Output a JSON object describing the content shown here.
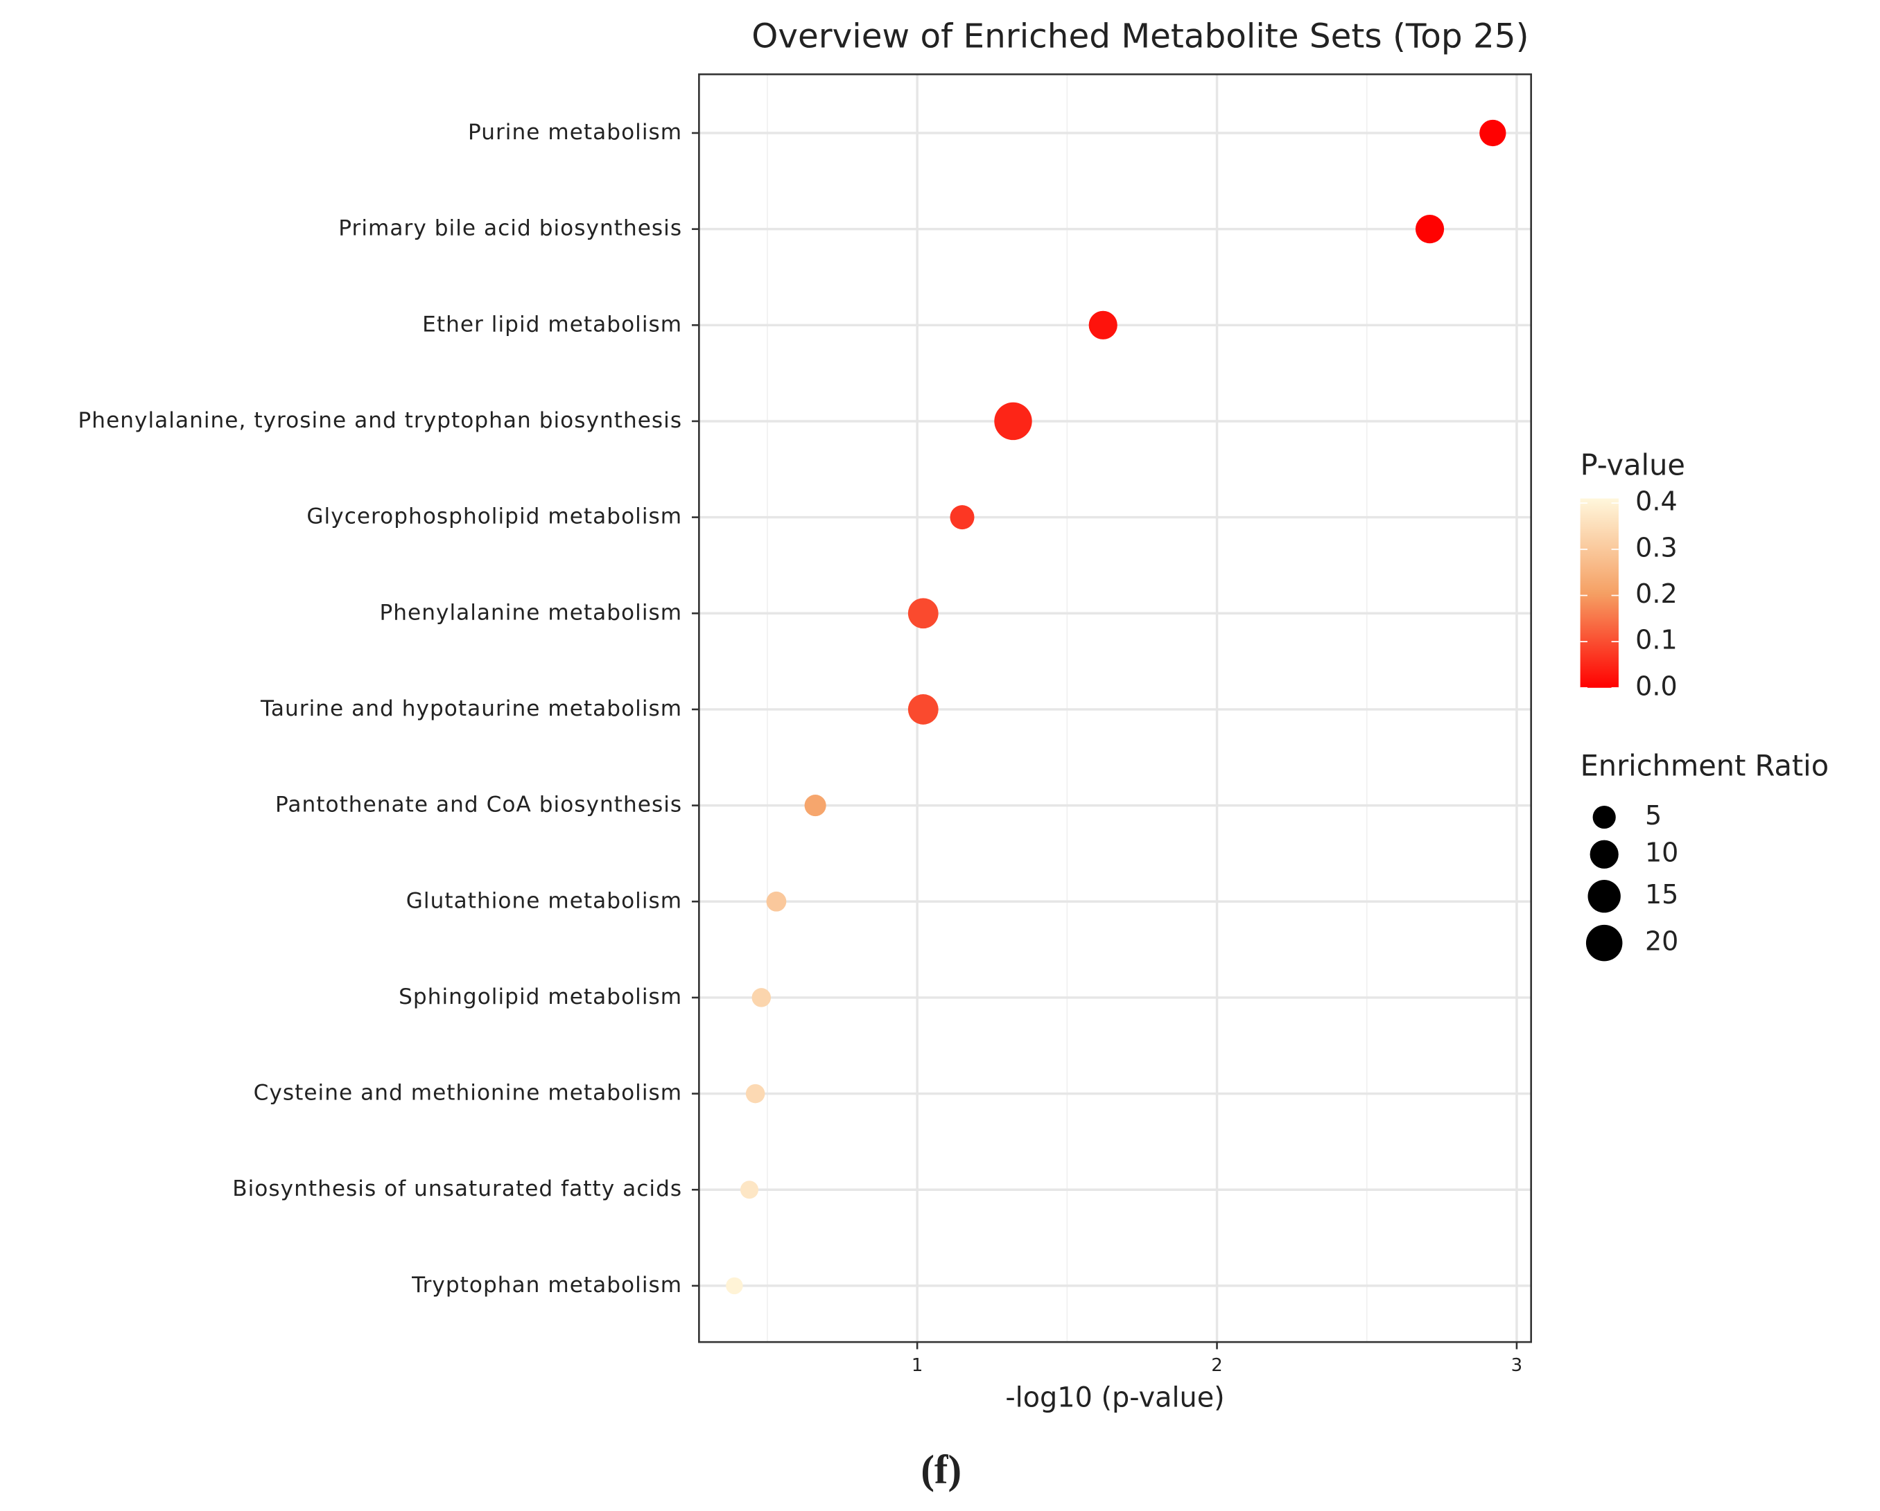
{
  "chart_data": {
    "type": "dot",
    "title": "Overview of Enriched Metabolite Sets (Top 25)",
    "xlabel": "-log10 (p-value)",
    "caption": "(f)",
    "categories": [
      "Purine metabolism",
      "Primary bile acid biosynthesis",
      "Ether lipid metabolism",
      "Phenylalanine, tyrosine and tryptophan biosynthesis",
      "Glycerophospholipid metabolism",
      "Phenylalanine metabolism",
      "Taurine and hypotaurine metabolism",
      "Pantothenate and CoA biosynthesis",
      "Glutathione metabolism",
      "Sphingolipid metabolism",
      "Cysteine and methionine metabolism",
      "Biosynthesis of unsaturated fatty acids",
      "Tryptophan metabolism"
    ],
    "values": [
      2.92,
      2.71,
      1.62,
      1.32,
      1.15,
      1.02,
      1.02,
      0.66,
      0.53,
      0.48,
      0.46,
      0.44,
      0.39
    ],
    "sizes": [
      8,
      10,
      10,
      22,
      6,
      12,
      12,
      4,
      3,
      2.5,
      2.5,
      2,
      1.5
    ],
    "p_values": [
      0.0012,
      0.002,
      0.024,
      0.048,
      0.071,
      0.095,
      0.095,
      0.22,
      0.3,
      0.33,
      0.34,
      0.37,
      0.4
    ],
    "xlim": [
      0.272,
      3.048
    ],
    "xticks": [
      1,
      2,
      3
    ],
    "grid": true,
    "color_legend": {
      "title": "P-value",
      "lim": [
        0,
        0.41
      ],
      "colors": [
        "#ff0000",
        "#f5a064",
        "#fff7dc"
      ],
      "ticks": [
        {
          "value": 0.4,
          "label": "0.4"
        },
        {
          "value": 0.3,
          "label": "0.3"
        },
        {
          "value": 0.2,
          "label": "0.2"
        },
        {
          "value": 0.1,
          "label": "0.1"
        },
        {
          "value": 0,
          "label": "0.0"
        }
      ]
    },
    "size_legend": {
      "title": "Enrichment Ratio",
      "ticks": [
        5,
        10,
        15,
        20
      ]
    }
  }
}
